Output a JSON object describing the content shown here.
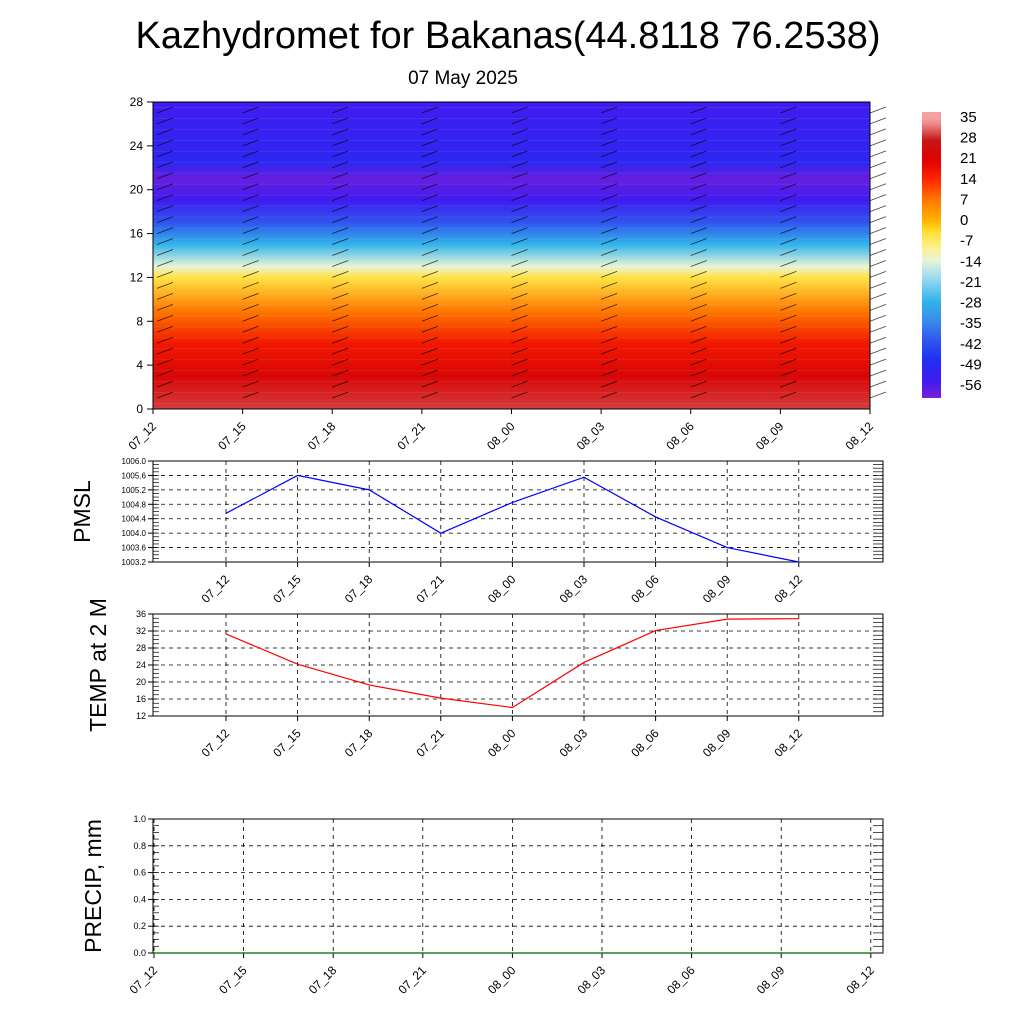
{
  "header": {
    "title": "Kazhydromet for Bakanas(44.8118 76.2538)",
    "subtitle": "07 May 2025"
  },
  "colors": {
    "pmsl_line": "#0000ff",
    "temp_line": "#ff0000",
    "precip_line": "#006400",
    "grid": "#000000"
  },
  "chart_data": [
    {
      "type": "heatmap",
      "title": "",
      "xlabel": "",
      "ylabel": "",
      "x": [
        "07_12",
        "07_15",
        "07_18",
        "07_21",
        "08_00",
        "08_03",
        "08_06",
        "08_09",
        "08_12"
      ],
      "y_ticks": [
        0,
        4,
        8,
        12,
        16,
        20,
        24,
        28
      ],
      "ylim": [
        0,
        28
      ],
      "colorbar_labels": [
        "35",
        "28",
        "21",
        "14",
        "7",
        "0",
        "-7",
        "-14",
        "-21",
        "-28",
        "-35",
        "-42",
        "-49",
        "-56"
      ],
      "temperature_profile": [
        {
          "y": 0,
          "value": 30
        },
        {
          "y": 3,
          "value": 23
        },
        {
          "y": 6,
          "value": 17
        },
        {
          "y": 9,
          "value": 7
        },
        {
          "y": 12,
          "value": -5
        },
        {
          "y": 13,
          "value": -14
        },
        {
          "y": 15,
          "value": -28
        },
        {
          "y": 17,
          "value": -42
        },
        {
          "y": 19,
          "value": -56
        },
        {
          "y": 21,
          "value": -60
        },
        {
          "y": 22.5,
          "value": -52
        },
        {
          "y": 28,
          "value": -56
        }
      ],
      "wind_barbs": true,
      "legend": "right"
    },
    {
      "type": "line",
      "ylabel": "PMSL",
      "x": [
        "07_12",
        "07_15",
        "07_18",
        "07_21",
        "08_00",
        "08_03",
        "08_06",
        "08_09",
        "08_12"
      ],
      "y_ticks": [
        "1003.2",
        "1003.6",
        "1004.0",
        "1004.4",
        "1004.8",
        "1005.2",
        "1005.6",
        "1006.0"
      ],
      "ylim": [
        1003.2,
        1006.0
      ],
      "series": [
        {
          "values": [
            1004.55,
            1005.6,
            1005.2,
            1004.0,
            1004.85,
            1005.55,
            1004.45,
            1003.6,
            1003.2
          ]
        }
      ],
      "grid": true
    },
    {
      "type": "line",
      "ylabel": "TEMP at 2 M",
      "x": [
        "07_12",
        "07_15",
        "07_18",
        "07_21",
        "08_00",
        "08_03",
        "08_06",
        "08_09",
        "08_12"
      ],
      "y_ticks": [
        "12",
        "16",
        "20",
        "24",
        "28",
        "32",
        "36"
      ],
      "ylim": [
        12,
        36
      ],
      "series": [
        {
          "values": [
            31.3,
            24.2,
            19.3,
            16.2,
            14.0,
            24.6,
            32.1,
            34.8,
            34.9
          ]
        }
      ],
      "grid": true
    },
    {
      "type": "line",
      "ylabel": "PRECIP, mm",
      "x": [
        "07_12",
        "07_15",
        "07_18",
        "07_21",
        "08_00",
        "08_03",
        "08_06",
        "08_09",
        "08_12"
      ],
      "y_ticks": [
        "0.0",
        "0.2",
        "0.4",
        "0.6",
        "0.8",
        "1.0"
      ],
      "ylim": [
        0,
        1.0
      ],
      "series": [
        {
          "values": [
            0,
            0,
            0,
            0,
            0,
            0,
            0,
            0,
            0
          ]
        }
      ],
      "grid": true
    }
  ]
}
